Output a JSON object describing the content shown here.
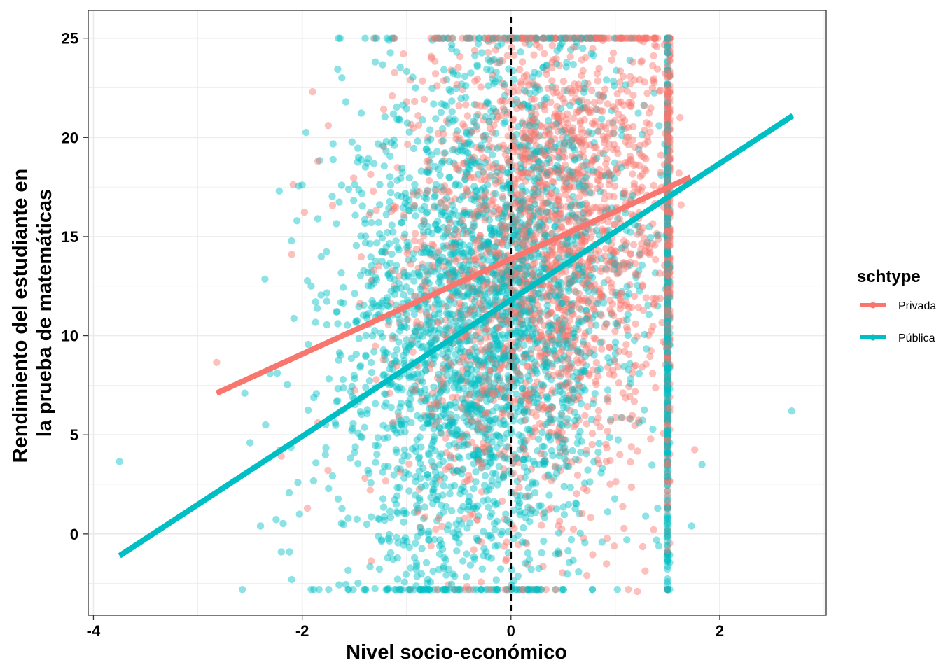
{
  "chart_data": {
    "type": "scatter",
    "title": "",
    "xlabel": "Nivel socio-económico",
    "ylabel": [
      "Rendimiento del estudiante en",
      "la prueba de matemáticas"
    ],
    "xlim": [
      -4.05,
      3.02
    ],
    "ylim": [
      -4.1,
      26.4
    ],
    "x_ticks": [
      -4,
      -2,
      0,
      2
    ],
    "x_tick_labels": [
      "-4",
      "-2",
      "0",
      "2"
    ],
    "y_ticks": [
      0,
      5,
      10,
      15,
      20,
      25
    ],
    "y_tick_labels": [
      "0",
      "5",
      "10",
      "15",
      "20",
      "25"
    ],
    "grid": true,
    "reference_line": {
      "orientation": "vertical",
      "x": 0,
      "style": "dashed",
      "color": "#000000"
    },
    "legend": {
      "title": "schtype",
      "placement": "right",
      "entries": [
        {
          "label": "Privada",
          "color": "#F8766D"
        },
        {
          "label": "Pública",
          "color": "#00BFC4"
        }
      ]
    },
    "series": [
      {
        "name": "Privada",
        "color": "#F8766D",
        "fit_line": {
          "x": [
            -2.82,
            1.72
          ],
          "y": [
            7.1,
            18.0
          ]
        },
        "cloud": {
          "x_range": [
            -2.2,
            1.52
          ],
          "x_center": 0.35,
          "x_sd": 0.7,
          "y_range": [
            -2.8,
            25
          ],
          "y_center": 14.5,
          "y_sd": 6.5,
          "n": 2600
        },
        "points": [
          {
            "x": -2.82,
            "y": 8.65
          },
          {
            "x": -2.1,
            "y": 14.1
          },
          {
            "x": -1.85,
            "y": 18.8
          },
          {
            "x": -1.75,
            "y": 20.6
          },
          {
            "x": -1.9,
            "y": 22.3
          },
          {
            "x": -1.95,
            "y": 1.3
          },
          {
            "x": 1.76,
            "y": 4.25
          },
          {
            "x": 1.61,
            "y": 18.2
          },
          {
            "x": 1.63,
            "y": 16.6
          },
          {
            "x": 1.62,
            "y": 21.0
          },
          {
            "x": 1.21,
            "y": -2.9
          }
        ]
      },
      {
        "name": "Pública",
        "color": "#00BFC4",
        "fit_line": {
          "x": [
            -3.75,
            2.7
          ],
          "y": [
            -1.1,
            21.1
          ]
        },
        "cloud": {
          "x_range": [
            -2.6,
            1.52
          ],
          "x_center": -0.25,
          "x_sd": 0.7,
          "y_range": [
            -2.8,
            25
          ],
          "y_center": 10.5,
          "y_sd": 7.0,
          "n": 3200
        },
        "points": [
          {
            "x": -3.75,
            "y": 3.65
          },
          {
            "x": 2.69,
            "y": 6.2
          },
          {
            "x": 1.83,
            "y": 3.5
          },
          {
            "x": 1.73,
            "y": 0.4
          },
          {
            "x": -2.22,
            "y": 17.3
          },
          {
            "x": -2.55,
            "y": 7.1
          },
          {
            "x": -2.5,
            "y": 4.6
          },
          {
            "x": -2.35,
            "y": 5.5
          },
          {
            "x": -2.4,
            "y": 0.4
          },
          {
            "x": -2.2,
            "y": -0.9
          },
          {
            "x": -2.1,
            "y": -2.3
          },
          {
            "x": -2.05,
            "y": 15.8
          },
          {
            "x": -2.0,
            "y": 17.6
          },
          {
            "x": -1.85,
            "y": 15.9
          },
          {
            "x": -1.62,
            "y": 23.0
          },
          {
            "x": -1.3,
            "y": 23.8
          },
          {
            "x": -1.17,
            "y": 24.9
          },
          {
            "x": -0.75,
            "y": 24.9
          }
        ]
      }
    ]
  }
}
